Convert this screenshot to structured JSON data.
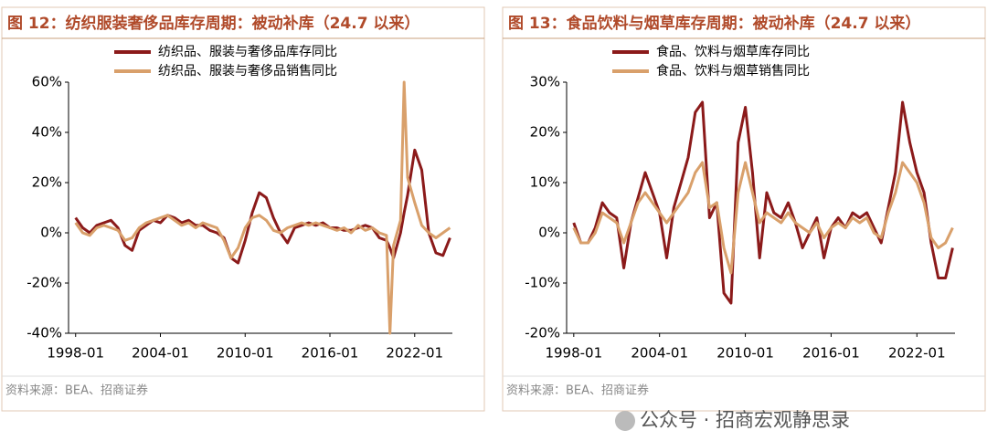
{
  "chart_data": [
    {
      "type": "line",
      "title": "图 12：纺织服装奢侈品库存周期：被动补库（24.7 以来）",
      "source": "资料来源：BEA、招商证券",
      "x": [
        "1998-01",
        "1998-07",
        "1999-01",
        "1999-07",
        "2000-01",
        "2000-07",
        "2001-01",
        "2001-07",
        "2002-01",
        "2002-07",
        "2003-01",
        "2003-07",
        "2004-01",
        "2004-07",
        "2005-01",
        "2005-07",
        "2006-01",
        "2006-07",
        "2007-01",
        "2007-07",
        "2008-01",
        "2008-07",
        "2009-01",
        "2009-07",
        "2010-01",
        "2010-07",
        "2011-01",
        "2011-07",
        "2012-01",
        "2012-07",
        "2013-01",
        "2013-07",
        "2014-01",
        "2014-07",
        "2015-01",
        "2015-07",
        "2016-01",
        "2016-07",
        "2017-01",
        "2017-07",
        "2018-01",
        "2018-07",
        "2019-01",
        "2019-07",
        "2020-01",
        "2020-04",
        "2020-07",
        "2021-01",
        "2021-04",
        "2021-07",
        "2022-01",
        "2022-07",
        "2023-01",
        "2023-07",
        "2024-01",
        "2024-07"
      ],
      "xlim": [
        "1997-07",
        "2024-09"
      ],
      "xticks": [
        "1998-01",
        "2004-01",
        "2010-01",
        "2016-01",
        "2022-01"
      ],
      "ylim": [
        -40,
        60
      ],
      "yticks": [
        {
          "value": -40,
          "label": "-40%"
        },
        {
          "value": -20,
          "label": "-20%"
        },
        {
          "value": 0,
          "label": "0%"
        },
        {
          "value": 20,
          "label": "20%"
        },
        {
          "value": 40,
          "label": "40%"
        },
        {
          "value": 60,
          "label": "60%"
        }
      ],
      "series": [
        {
          "name": "纺织品、服装与奢侈品库存同比",
          "color": "#8b1a1a",
          "values": [
            6,
            2,
            0,
            3,
            4,
            5,
            2,
            -5,
            -7,
            1,
            3,
            5,
            4,
            7,
            6,
            4,
            5,
            3,
            3,
            1,
            0,
            -2,
            -10,
            -12,
            -3,
            8,
            16,
            14,
            6,
            0,
            -4,
            2,
            3,
            4,
            3,
            4,
            2,
            2,
            1,
            1,
            2,
            3,
            2,
            -2,
            -3,
            -6,
            -10,
            0,
            8,
            15,
            33,
            25,
            0,
            -8,
            -9,
            -2
          ]
        },
        {
          "name": "纺织品、服装与奢侈品销售同比",
          "color": "#d9a06b",
          "values": [
            4,
            0,
            -1,
            2,
            3,
            2,
            1,
            -3,
            -2,
            2,
            4,
            5,
            6,
            7,
            5,
            3,
            4,
            2,
            4,
            3,
            2,
            -3,
            -10,
            -6,
            2,
            6,
            7,
            5,
            1,
            0,
            2,
            3,
            4,
            3,
            4,
            3,
            2,
            1,
            2,
            0,
            3,
            1,
            2,
            0,
            -1,
            -40,
            -5,
            5,
            60,
            22,
            12,
            3,
            0,
            -2,
            0,
            2
          ]
        }
      ]
    },
    {
      "type": "line",
      "title": "图 13：食品饮料与烟草库存周期：被动补库（24.7 以来）",
      "source": "资料来源：BEA、招商证券",
      "x": [
        "1998-01",
        "1998-07",
        "1999-01",
        "1999-07",
        "2000-01",
        "2000-07",
        "2001-01",
        "2001-07",
        "2002-01",
        "2002-07",
        "2003-01",
        "2003-07",
        "2004-01",
        "2004-07",
        "2005-01",
        "2005-07",
        "2006-01",
        "2006-07",
        "2007-01",
        "2007-07",
        "2008-01",
        "2008-07",
        "2009-01",
        "2009-07",
        "2010-01",
        "2010-07",
        "2011-01",
        "2011-07",
        "2012-01",
        "2012-07",
        "2013-01",
        "2013-07",
        "2014-01",
        "2014-07",
        "2015-01",
        "2015-07",
        "2016-01",
        "2016-07",
        "2017-01",
        "2017-07",
        "2018-01",
        "2018-07",
        "2019-01",
        "2019-07",
        "2020-01",
        "2020-07",
        "2021-01",
        "2021-07",
        "2022-01",
        "2022-07",
        "2023-01",
        "2023-07",
        "2024-01",
        "2024-07"
      ],
      "xlim": [
        "1997-07",
        "2024-09"
      ],
      "xticks": [
        "1998-01",
        "2004-01",
        "2010-01",
        "2016-01",
        "2022-01"
      ],
      "ylim": [
        -20,
        30
      ],
      "yticks": [
        {
          "value": -20,
          "label": "-20%"
        },
        {
          "value": -10,
          "label": "-10%"
        },
        {
          "value": 0,
          "label": "0%"
        },
        {
          "value": 10,
          "label": "10%"
        },
        {
          "value": 20,
          "label": "20%"
        },
        {
          "value": 30,
          "label": "30%"
        }
      ],
      "series": [
        {
          "name": "食品、饮料与烟草库存同比",
          "color": "#8b1a1a",
          "values": [
            2,
            -2,
            -2,
            1,
            6,
            4,
            3,
            -7,
            2,
            7,
            12,
            8,
            4,
            -5,
            5,
            10,
            15,
            24,
            26,
            3,
            6,
            -12,
            -14,
            18,
            25,
            12,
            -5,
            8,
            4,
            3,
            6,
            2,
            -3,
            0,
            3,
            -5,
            1,
            3,
            1,
            4,
            3,
            4,
            1,
            -2,
            5,
            12,
            26,
            18,
            12,
            8,
            -2,
            -9,
            -9,
            -3
          ]
        },
        {
          "name": "食品、饮料与烟草销售同比",
          "color": "#d9a06b",
          "values": [
            1,
            -2,
            -2,
            0,
            4,
            3,
            2,
            -2,
            2,
            6,
            8,
            6,
            4,
            2,
            4,
            6,
            8,
            12,
            14,
            5,
            6,
            -3,
            -8,
            8,
            14,
            8,
            2,
            4,
            3,
            2,
            4,
            2,
            1,
            0,
            2,
            -1,
            1,
            2,
            1,
            3,
            2,
            3,
            0,
            -1,
            4,
            8,
            14,
            12,
            10,
            6,
            -1,
            -3,
            -2,
            1
          ]
        }
      ]
    }
  ],
  "watermark": "公众号 · 招商宏观静思录"
}
